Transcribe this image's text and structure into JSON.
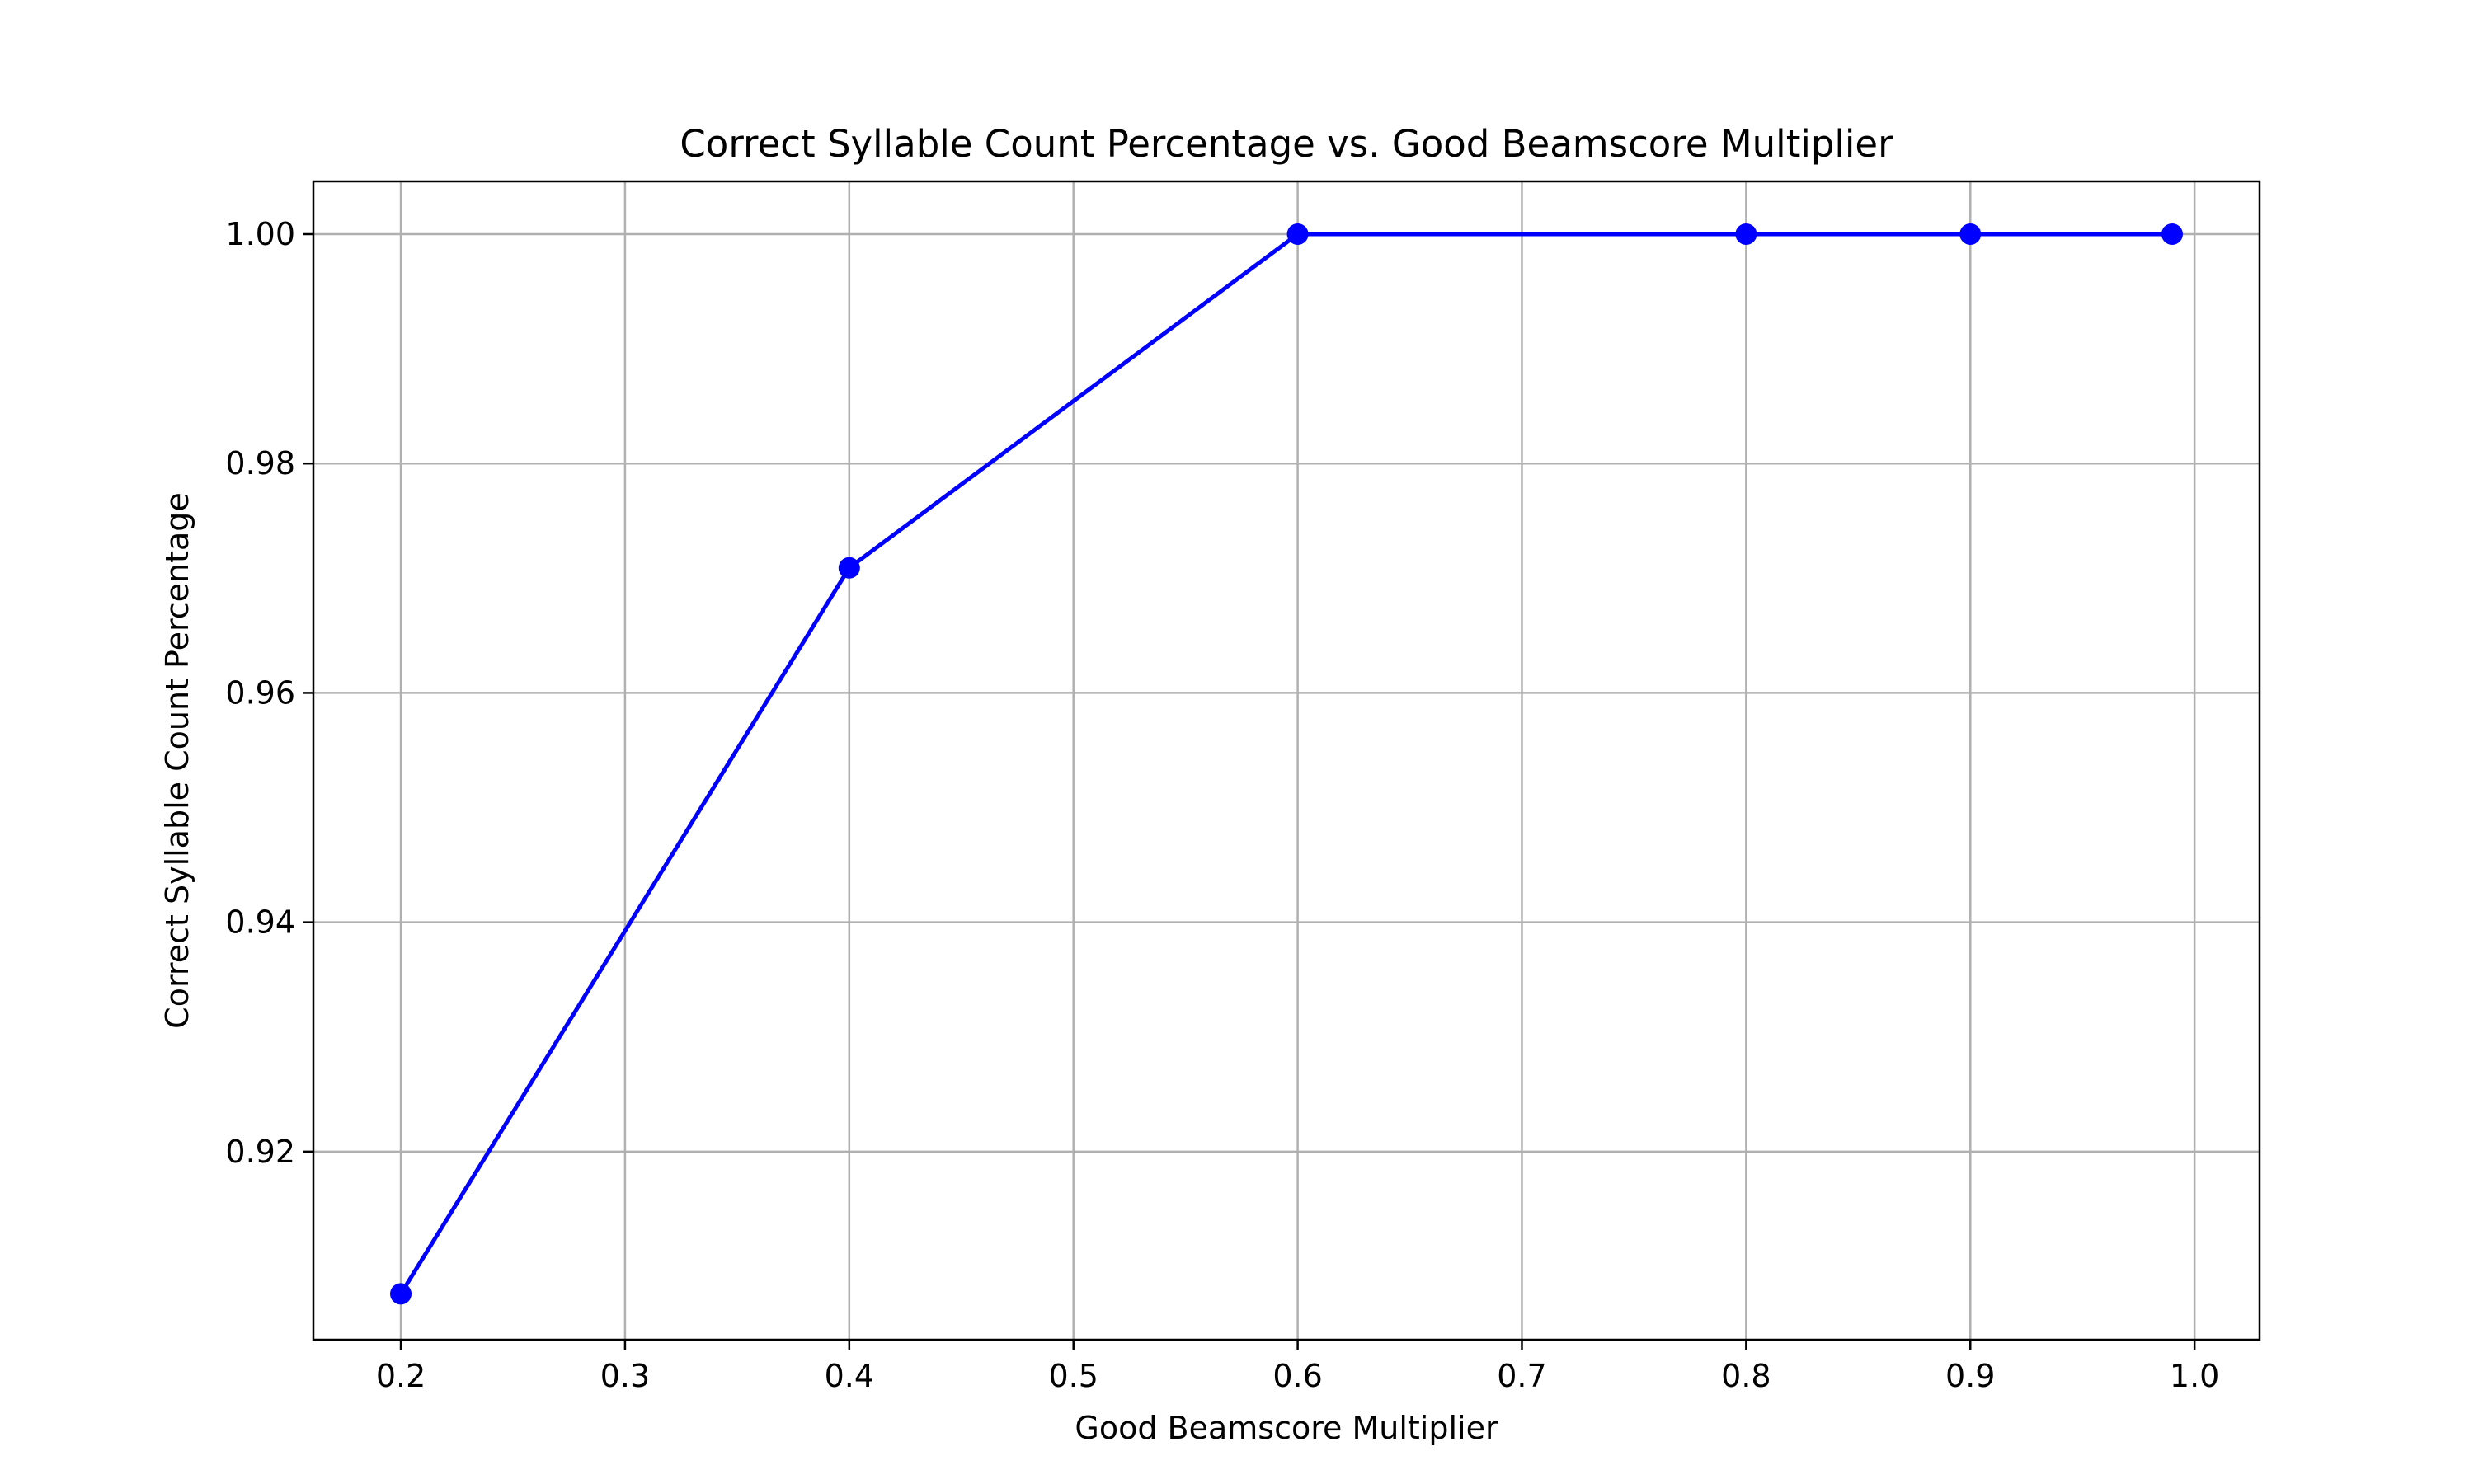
{
  "chart_data": {
    "type": "line",
    "title": "Correct Syllable Count Percentage vs. Good Beamscore Multiplier",
    "xlabel": "Good Beamscore Multiplier",
    "ylabel": "Correct Syllable Count Percentage",
    "xlim": [
      0.161,
      1.029
    ],
    "ylim": [
      0.9036,
      1.0046
    ],
    "xticks": [
      0.2,
      0.3,
      0.4,
      0.5,
      0.6,
      0.7,
      0.8,
      0.9,
      1.0
    ],
    "xtick_labels": [
      "0.2",
      "0.3",
      "0.4",
      "0.5",
      "0.6",
      "0.7",
      "0.8",
      "0.9",
      "1.0"
    ],
    "yticks": [
      0.92,
      0.94,
      0.96,
      0.98,
      1.0
    ],
    "ytick_labels": [
      "0.92",
      "0.94",
      "0.96",
      "0.98",
      "1.00"
    ],
    "grid": true,
    "series": [
      {
        "color": "#0000ff",
        "marker": "circle",
        "x": [
          0.2,
          0.4,
          0.6,
          0.8,
          0.9,
          0.99
        ],
        "y": [
          0.9076,
          0.9709,
          1.0,
          1.0,
          1.0,
          1.0
        ]
      }
    ]
  }
}
